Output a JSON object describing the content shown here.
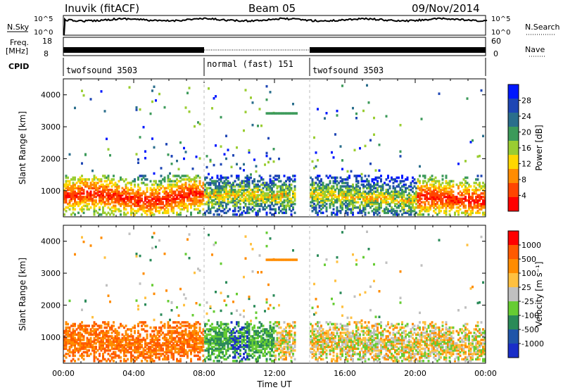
{
  "header": {
    "station": "Inuvik (fitACF)",
    "beam": "Beam 05",
    "date": "09/Nov/2014"
  },
  "strip": {
    "nsky_label": "N.Sky",
    "nsky_ticks": [
      "10^5",
      "10^0"
    ],
    "nsearch_label": "N.Search",
    "nsearch_ticks": [
      "10^5",
      "10^0"
    ],
    "freq_label_1": "Freq.",
    "freq_label_2": "[MHz]",
    "freq_ticks": [
      "18",
      "8"
    ],
    "nave_label": "Nave",
    "nave_ticks": [
      "60",
      "0"
    ],
    "cpid_label": "CPID"
  },
  "modes": [
    {
      "label": "twofsound 3503",
      "start": 0,
      "end": 8
    },
    {
      "label": "normal (fast) 151",
      "start": 8,
      "end": 14
    },
    {
      "label": "twofsound 3503",
      "start": 14,
      "end": 24
    }
  ],
  "colors": {
    "power_scale": [
      "#0018ff",
      "#1e46b4",
      "#2a6e8c",
      "#3c9a5a",
      "#9acd32",
      "#ffd700",
      "#ff8c00",
      "#ff4500",
      "#ff0000"
    ],
    "velocity_scale": [
      "#1a2ec8",
      "#1f55a8",
      "#2a8a58",
      "#66cc33",
      "#c0c0c0",
      "#ffc040",
      "#ff8c00",
      "#ff5a00",
      "#ff0000"
    ]
  },
  "chart_data": [
    {
      "type": "heatmap",
      "title": "Power",
      "ylabel": "Slant Range [km]",
      "xlabel": "",
      "x_ticks": [
        "00:00",
        "04:00",
        "08:00",
        "12:00",
        "16:00",
        "20:00",
        "00:00"
      ],
      "xlim": [
        0,
        24
      ],
      "ylim": [
        180,
        4500
      ],
      "y_ticks": [
        1000,
        2000,
        3000,
        4000
      ],
      "colorbar_label": "Power [dB]",
      "colorbar_ticks": [
        "28",
        "24",
        "20",
        "16",
        "12",
        "8",
        "4"
      ],
      "features": [
        {
          "t0": 0,
          "t1": 8,
          "r0": 300,
          "r1": 1400,
          "level": "high"
        },
        {
          "t0": 8,
          "t1": 14,
          "r0": 500,
          "r1": 1300,
          "level": "medium"
        },
        {
          "t0": 14,
          "t1": 20,
          "r0": 400,
          "r1": 1600,
          "level": "medium"
        },
        {
          "t0": 20,
          "t1": 24,
          "r0": 500,
          "r1": 1300,
          "level": "high"
        }
      ]
    },
    {
      "type": "heatmap",
      "title": "Velocity",
      "ylabel": "Slant Range [km]",
      "xlabel": "Time UT",
      "x_ticks": [
        "00:00",
        "04:00",
        "08:00",
        "12:00",
        "16:00",
        "20:00",
        "00:00"
      ],
      "xlim": [
        0,
        24
      ],
      "ylim": [
        180,
        4500
      ],
      "y_ticks": [
        1000,
        2000,
        3000,
        4000
      ],
      "colorbar_label": "Velocity [m s⁻¹]",
      "colorbar_ticks": [
        "1000",
        "500",
        "100",
        "25",
        "-25",
        "-100",
        "-500",
        "-1000"
      ]
    }
  ]
}
